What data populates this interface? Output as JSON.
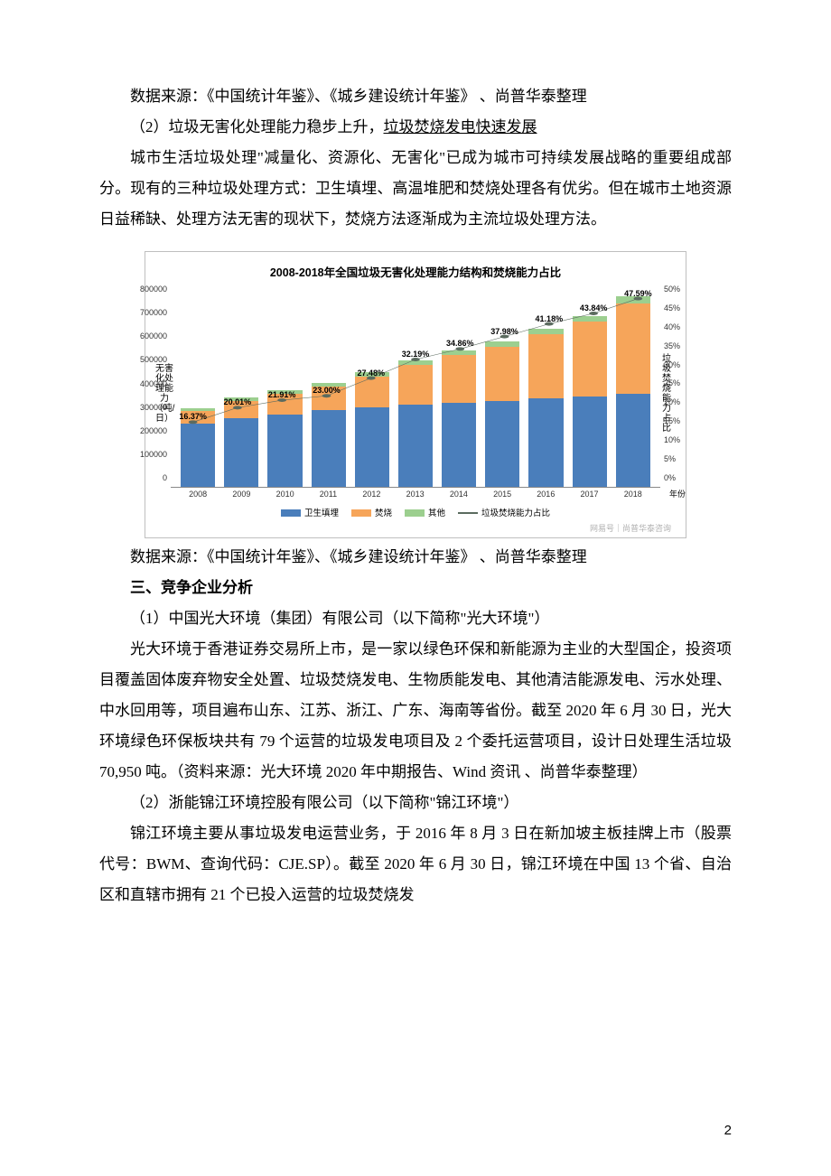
{
  "body": {
    "p1": "数据来源：《中国统计年鉴》、《城乡建设统计年鉴》 、尚普华泰整理",
    "p2_a": "（2）垃圾无害化处理能力稳步上升，",
    "p2_b": "垃圾焚烧发电快速发展",
    "p3": "城市生活垃圾处理\"减量化、资源化、无害化\"已成为城市可持续发展战略的重要组成部分。现有的三种垃圾处理方式：卫生填埋、高温堆肥和焚烧处理各有优劣。但在城市土地资源日益稀缺、处理方法无害的现状下，焚烧方法逐渐成为主流垃圾处理方法。",
    "p4": "数据来源：《中国统计年鉴》、《城乡建设统计年鉴》 、尚普华泰整理",
    "h3": "三、竞争企业分析",
    "p5": "（1）中国光大环境（集团）有限公司（以下简称\"光大环境\"）",
    "p6": "光大环境于香港证券交易所上市，是一家以绿色环保和新能源为主业的大型国企，投资项目覆盖固体废弃物安全处置、垃圾焚烧发电、生物质能发电、其他清洁能源发电、污水处理、中水回用等，项目遍布山东、江苏、浙江、广东、海南等省份。截至 2020 年 6 月 30 日，光大环境绿色环保板块共有 79 个运营的垃圾发电项目及 2 个委托运营项目，设计日处理生活垃圾 70,950 吨。（资料来源：光大环境 2020 年中期报告、Wind 资讯 、尚普华泰整理）",
    "p7": "（2）浙能锦江环境控股有限公司（以下简称\"锦江环境\"）",
    "p8": "锦江环境主要从事垃圾发电运营业务，于 2016 年 8 月 3 日在新加坡主板挂牌上市（股票代号：BWM、查询代码：CJE.SP）。截至 2020 年 6 月 30 日，锦江环境在中国 13 个省、自治区和直辖市拥有 21 个已投入运营的垃圾焚烧发",
    "page_number": "2"
  },
  "chart": {
    "title": "2008-2018年全国垃圾无害化处理能力结构和焚烧能力占比",
    "y_left_label": "无害化处理能力（吨/日）",
    "y_right_label": "垃圾焚烧能力占比",
    "x_axis_label": "年份",
    "y_left_max": 800000,
    "y_left_ticks": [
      "800000",
      "700000",
      "600000",
      "500000",
      "400000",
      "300000",
      "200000",
      "100000",
      "0"
    ],
    "y_right_max": 50,
    "y_right_ticks": [
      "50%",
      "45%",
      "40%",
      "35%",
      "30%",
      "25%",
      "20%",
      "15%",
      "10%",
      "5%",
      "0%"
    ],
    "categories": [
      "2008",
      "2009",
      "2010",
      "2011",
      "2012",
      "2013",
      "2014",
      "2015",
      "2016",
      "2017",
      "2018"
    ],
    "series": {
      "landfill": {
        "label": "卫生填埋",
        "color": "#4a7ebb",
        "values": [
          255000,
          275000,
          290000,
          310000,
          320000,
          330000,
          340000,
          345000,
          355000,
          365000,
          375000
        ]
      },
      "incineration": {
        "label": "焚烧",
        "color": "#f6a55a",
        "values": [
          52000,
          72000,
          85000,
          95000,
          125000,
          160000,
          190000,
          220000,
          260000,
          300000,
          365000
        ]
      },
      "other": {
        "label": "其他",
        "color": "#9ccf8f",
        "values": [
          11000,
          13000,
          14000,
          15000,
          16000,
          18000,
          20000,
          21000,
          22000,
          23000,
          27000
        ]
      }
    },
    "line": {
      "label": "垃圾焚烧能力占比",
      "color": "#5b6b5f",
      "values": [
        16.37,
        20.01,
        21.91,
        23.0,
        27.48,
        32.19,
        34.86,
        37.98,
        41.18,
        43.84,
        47.59
      ],
      "labels": [
        "16.37%",
        "20.01%",
        "21.91%",
        "23.00%",
        "27.48%",
        "32.19%",
        "34.86%",
        "37.98%",
        "41.18%",
        "43.84%",
        "47.59%"
      ]
    },
    "watermark": "网易号｜尚普华泰咨询"
  }
}
